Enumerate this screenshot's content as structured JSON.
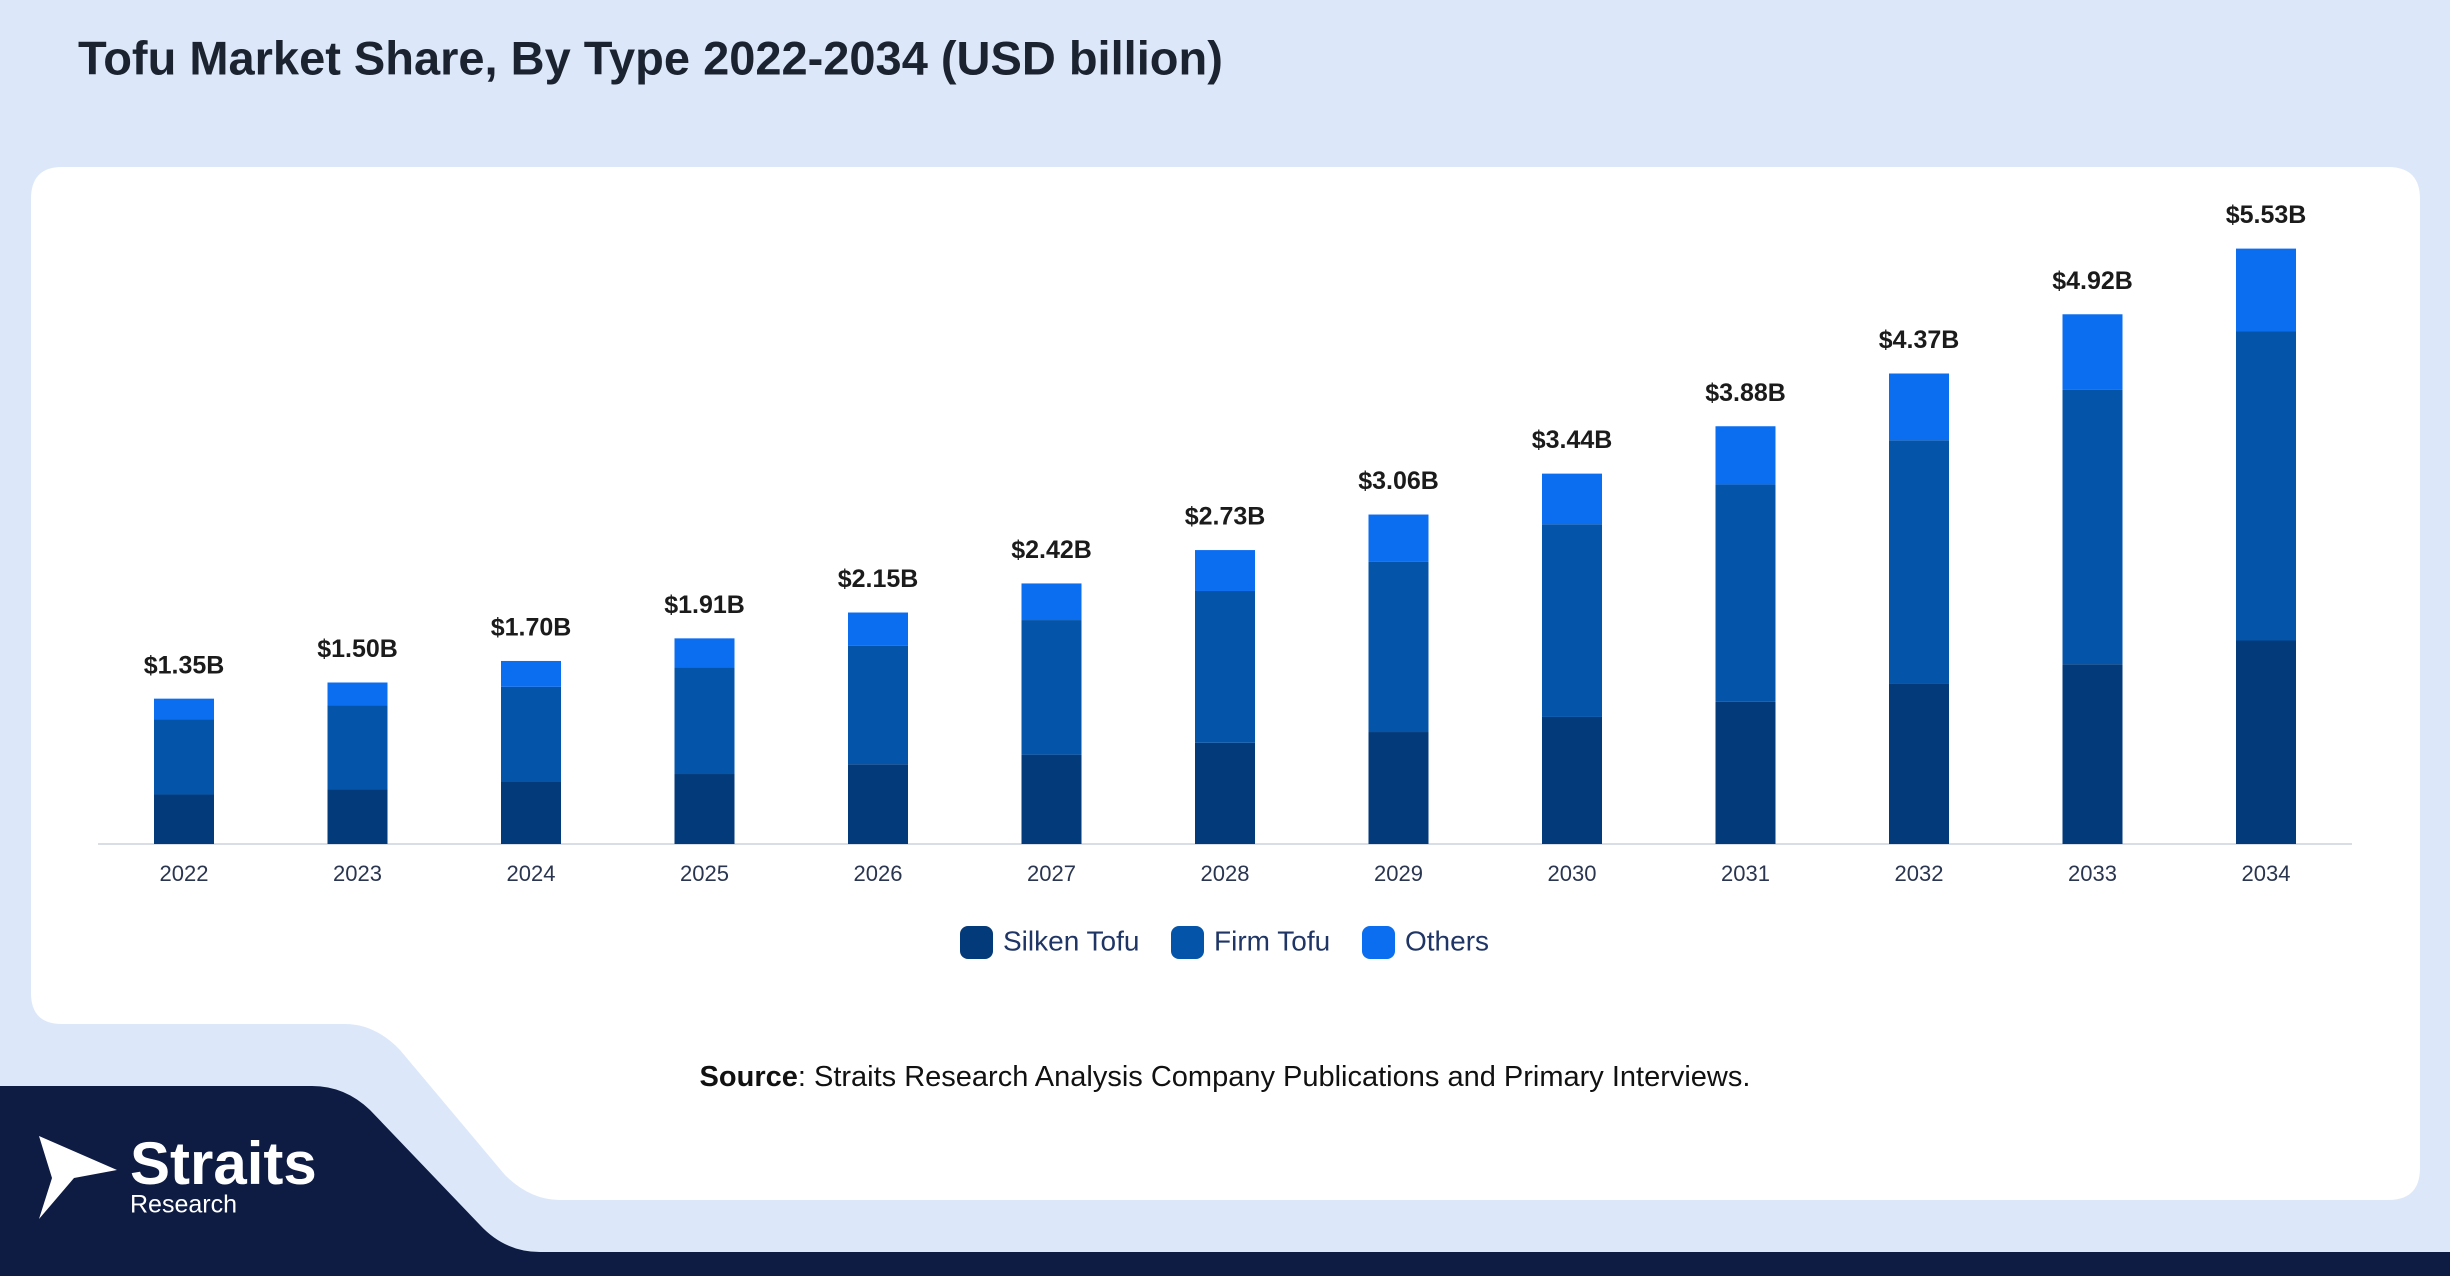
{
  "chart_data": {
    "type": "stacked_bar",
    "title": "Tofu Market Share, By Type 2022-2034 (USD billion)",
    "categories": [
      "2022",
      "2023",
      "2024",
      "2025",
      "2026",
      "2027",
      "2028",
      "2029",
      "2030",
      "2031",
      "2032",
      "2033",
      "2034"
    ],
    "series": [
      {
        "name": "Silken Tofu",
        "color": "#033a7a",
        "values": [
          0.46,
          0.51,
          0.58,
          0.65,
          0.74,
          0.83,
          0.94,
          1.04,
          1.18,
          1.32,
          1.49,
          1.67,
          1.89
        ]
      },
      {
        "name": "Firm Tofu",
        "color": "#0455aa",
        "values": [
          0.7,
          0.78,
          0.88,
          0.99,
          1.1,
          1.25,
          1.41,
          1.58,
          1.79,
          2.02,
          2.26,
          2.55,
          2.87
        ]
      },
      {
        "name": "Others",
        "color": "#0b6df0",
        "values": [
          0.19,
          0.21,
          0.24,
          0.27,
          0.31,
          0.34,
          0.38,
          0.44,
          0.47,
          0.54,
          0.62,
          0.7,
          0.77
        ]
      }
    ],
    "totals": {
      "values": [
        1.35,
        1.5,
        1.7,
        1.91,
        2.15,
        2.42,
        2.73,
        3.06,
        3.44,
        3.88,
        4.37,
        4.92,
        5.53
      ],
      "value_labels": [
        "$1.35B",
        "$1.50B",
        "$1.70B",
        "$1.91B",
        "$2.15B",
        "$2.42B",
        "$2.73B",
        "$3.06B",
        "$3.44B",
        "$3.88B",
        "$4.37B",
        "$4.92B",
        "$5.53B"
      ]
    },
    "ylim": [
      0,
      6
    ],
    "source_label": "Source",
    "source_text": ": Straits Research Analysis Company Publications and Primary Interviews."
  },
  "brand": {
    "name": "Straits",
    "sub": "Research"
  }
}
